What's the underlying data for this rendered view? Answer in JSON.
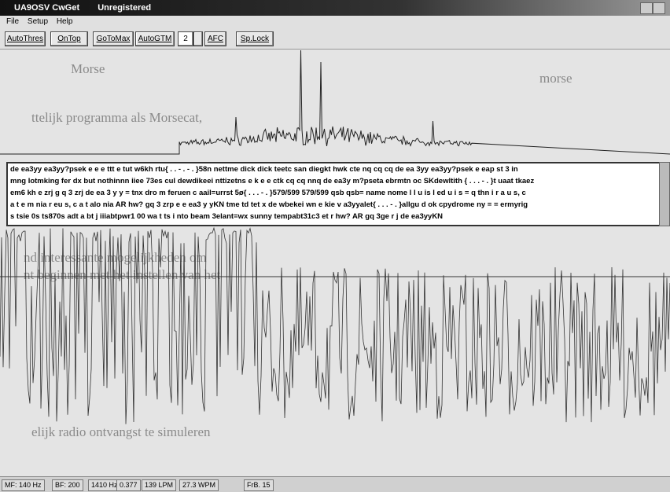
{
  "window": {
    "title": "UA9OSV CwGet",
    "status": "Unregistered"
  },
  "menu": [
    "File",
    "Setup",
    "Help"
  ],
  "toolbar": {
    "buttons": [
      "AutoThres",
      "OnTop",
      "GoToMax",
      "AutoGTM"
    ],
    "spinner": "2",
    "buttons2": [
      "AFC",
      "Sp.Lock"
    ]
  },
  "background_text": [
    "Morse",
    "morse",
    "ttelijk programma als Morsecat,",
    "nd interessante mogelijkheden om",
    "nt beginnen met het instellen van het",
    "elijk radio ontvangst te simuleren"
  ],
  "decoded_text": [
    " de ea3yy ea3yy?psek e e e ttt e tut w6kh rtu{ . . - . - . }58n nettme dick dick teetc san diegkt hwk cte nq cq cq de ea 3yy ea3yy?psek e eap st 3 in",
    "mng lotmking fer dx but nothinnn iiee 73es cul dewdikeei nttizetns e k e e ctk cq cq nnq de ea3y m?pseta ebrmtn oc SKdewltith { . . . - . }t uaat tkaez",
    "em6 kh e zrj g q 3 zrj de ea 3 y y = tnx dro m feruen c aail=urrst 5ø{ . . . - . }579/599 579/599 qsb qsb= name nome l l u is l ed u i s = q thn i r a u s, c",
    "a t e m nia r eu s, c a t alo nia AR hw? gq 3 zrp e e ea3 y yKN tme td tet x de wbekei wn e kie v a3yyalet{ . . . - . }allgu d ok cpydrome ny = = ermyrig",
    "s tsie 0s ts870s adt a bt j iiiabtpwr1 00 wa t ts i nto beam 3elant=wx sunny tempabt31c3 et r hw? AR gq 3ge r j de ea3yyKN"
  ],
  "status_bar": [
    "MF: 140 Hz",
    "BF: 200",
    "1410 Hz",
    "0.377",
    "139 LPM",
    "27.3 WPM",
    "FrB. 15"
  ]
}
